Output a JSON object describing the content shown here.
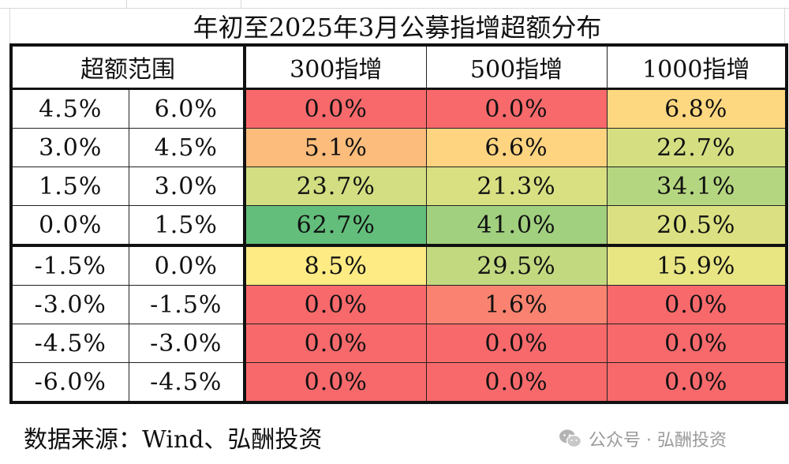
{
  "title": "年初至2025年3月公募指增超额分布",
  "headers": {
    "range": "超额范围",
    "cols": [
      "300指增",
      "500指增",
      "1000指增"
    ]
  },
  "rows": [
    {
      "low": "4.5%",
      "high": "6.0%",
      "values": [
        "0.0%",
        "0.0%",
        "6.8%"
      ]
    },
    {
      "low": "3.0%",
      "high": "4.5%",
      "values": [
        "5.1%",
        "6.6%",
        "22.7%"
      ]
    },
    {
      "low": "1.5%",
      "high": "3.0%",
      "values": [
        "23.7%",
        "21.3%",
        "34.1%"
      ]
    },
    {
      "low": "0.0%",
      "high": "1.5%",
      "values": [
        "62.7%",
        "41.0%",
        "20.5%"
      ]
    },
    {
      "low": "-1.5%",
      "high": "0.0%",
      "values": [
        "8.5%",
        "29.5%",
        "15.9%"
      ]
    },
    {
      "low": "-3.0%",
      "high": "-1.5%",
      "values": [
        "0.0%",
        "1.6%",
        "0.0%"
      ]
    },
    {
      "low": "-4.5%",
      "high": "-3.0%",
      "values": [
        "0.0%",
        "0.0%",
        "0.0%"
      ]
    },
    {
      "low": "-6.0%",
      "high": "-4.5%",
      "values": [
        "0.0%",
        "0.0%",
        "0.0%"
      ]
    }
  ],
  "source": "数据来源：Wind、弘酬投资",
  "watermark": {
    "text": "公众号 · 弘酬投资",
    "icon": "wechat-icon"
  },
  "colors": {
    "low": "#f8696b",
    "mid": "#ffeb84",
    "high": "#63be7b"
  },
  "chart_data": {
    "type": "heatmap",
    "title": "年初至2025年3月公募指增超额分布",
    "row_header": "超额范围",
    "columns": [
      "300指增",
      "500指增",
      "1000指增"
    ],
    "row_ranges": [
      [
        "4.5%",
        "6.0%"
      ],
      [
        "3.0%",
        "4.5%"
      ],
      [
        "1.5%",
        "3.0%"
      ],
      [
        "0.0%",
        "1.5%"
      ],
      [
        "-1.5%",
        "0.0%"
      ],
      [
        "-3.0%",
        "-1.5%"
      ],
      [
        "-4.5%",
        "-3.0%"
      ],
      [
        "-6.0%",
        "-4.5%"
      ]
    ],
    "values": [
      [
        0.0,
        0.0,
        6.8
      ],
      [
        5.1,
        6.6,
        22.7
      ],
      [
        23.7,
        21.3,
        34.1
      ],
      [
        62.7,
        41.0,
        20.5
      ],
      [
        8.5,
        29.5,
        15.9
      ],
      [
        0.0,
        1.6,
        0.0
      ],
      [
        0.0,
        0.0,
        0.0
      ],
      [
        0.0,
        0.0,
        0.0
      ]
    ],
    "unit": "%",
    "color_scale": [
      "#f8696b",
      "#ffeb84",
      "#63be7b"
    ]
  }
}
